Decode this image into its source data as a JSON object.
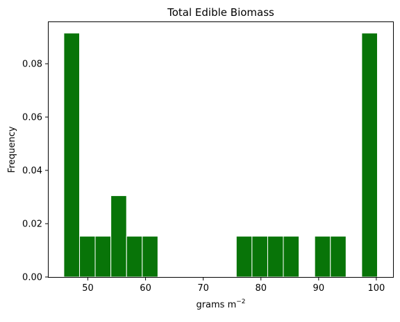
{
  "chart_data": {
    "type": "bar",
    "title": "Total Edible Biomass",
    "xlabel": "grams m",
    "xlabel_superscript": "−2",
    "ylabel": "Frequency",
    "xlim": [
      43.2,
      102.9
    ],
    "ylim": [
      0,
      0.0956
    ],
    "xticks": [
      {
        "value": 50,
        "label": "50"
      },
      {
        "value": 60,
        "label": "60"
      },
      {
        "value": 70,
        "label": "70"
      },
      {
        "value": 80,
        "label": "80"
      },
      {
        "value": 90,
        "label": "90"
      },
      {
        "value": 100,
        "label": "100"
      }
    ],
    "yticks": [
      {
        "value": 0,
        "label": "0.00"
      },
      {
        "value": 0.02,
        "label": "0.02"
      },
      {
        "value": 0.04,
        "label": "0.04"
      },
      {
        "value": 0.06,
        "label": "0.06"
      },
      {
        "value": 0.08,
        "label": "0.08"
      }
    ],
    "bin_edges": [
      45.84,
      48.56,
      51.27,
      53.99,
      56.71,
      59.43,
      62.14,
      64.86,
      67.58,
      70.3,
      73.01,
      75.73,
      78.45,
      81.17,
      83.88,
      86.6,
      89.32,
      92.04,
      94.75,
      97.47,
      100.19
    ],
    "values": [
      0.0915,
      0.0153,
      0.0153,
      0.0305,
      0.0153,
      0.0153,
      0,
      0,
      0,
      0,
      0,
      0.0153,
      0.0153,
      0.0153,
      0.0153,
      0,
      0.0153,
      0.0153,
      0,
      0.0915
    ],
    "bar_color": "#087408",
    "edge_color": "#ffffff",
    "grid": false,
    "legend": "none"
  }
}
